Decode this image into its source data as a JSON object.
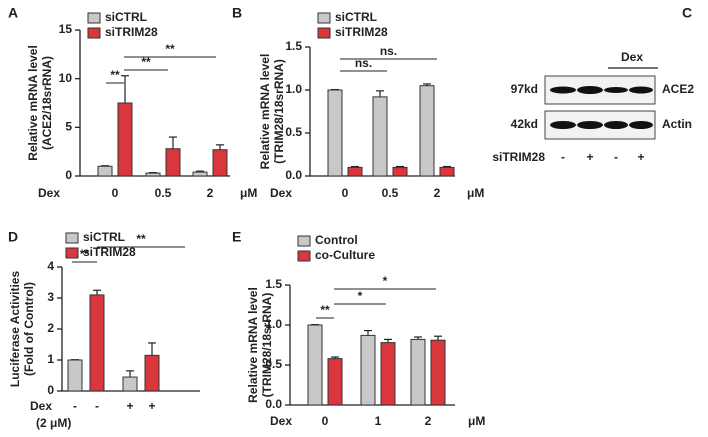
{
  "chart_data": [
    {
      "type": "bar",
      "panel": "A",
      "ylabel": [
        "Relative mRNA level",
        "(ACE2/18srRNA)"
      ],
      "xlabel": "Dex",
      "unit": "μM",
      "categories": [
        "0",
        "0.5",
        "2"
      ],
      "series": [
        {
          "name": "siCTRL",
          "color": "#c8c8c8",
          "values": [
            1,
            0.3,
            0.4
          ],
          "errors": [
            0.05,
            0.05,
            0.1
          ]
        },
        {
          "name": "siTRIM28",
          "color": "#d9363e",
          "values": [
            7.5,
            2.8,
            2.7
          ],
          "errors": [
            2.8,
            1.2,
            0.5
          ]
        }
      ],
      "ylim": [
        0,
        15
      ],
      "yticks": [
        0,
        5,
        10,
        15
      ],
      "annotations": [
        "**",
        "**",
        "**"
      ]
    },
    {
      "type": "bar",
      "panel": "B",
      "ylabel": [
        "Relative mRNA level",
        "(TRIM28/18srRNA)"
      ],
      "xlabel": "Dex",
      "unit": "μM",
      "categories": [
        "0",
        "0.5",
        "2"
      ],
      "series": [
        {
          "name": "siCTRL",
          "color": "#c8c8c8",
          "values": [
            1.0,
            0.92,
            1.05
          ],
          "errors": [
            0.005,
            0.07,
            0.02
          ]
        },
        {
          "name": "siTRIM28",
          "color": "#d9363e",
          "values": [
            0.1,
            0.1,
            0.1
          ],
          "errors": [
            0.01,
            0.01,
            0.01
          ]
        }
      ],
      "ylim": [
        0,
        1.5
      ],
      "yticks": [
        {
          "value": 0,
          "label": "0.0"
        },
        {
          "value": 0.5,
          "label": "0.5"
        },
        {
          "value": 1,
          "label": "1.0"
        },
        {
          "value": 1.5,
          "label": "1.5"
        }
      ],
      "annotations": [
        "ns.",
        "ns."
      ]
    },
    {
      "type": "bar",
      "panel": "D",
      "ylabel": [
        "Luciferase Activities",
        "(Fold of Control)"
      ],
      "xlabel": "Dex",
      "unit": "(2 μM)",
      "categories": [
        "-",
        "-",
        "+",
        "+"
      ],
      "series": [
        {
          "name": "siCTRL",
          "color": "#c8c8c8",
          "values": [
            1,
            null,
            0.45,
            null
          ],
          "errors": [
            0.01,
            null,
            0.2,
            null
          ]
        },
        {
          "name": "siTRIM28",
          "color": "#d9363e",
          "values": [
            null,
            3.1,
            null,
            1.15
          ],
          "errors": [
            null,
            0.15,
            null,
            0.4
          ]
        }
      ],
      "ylim": [
        0,
        4
      ],
      "yticks": [
        0,
        1,
        2,
        3,
        4
      ],
      "annotations": [
        "**",
        "**"
      ]
    },
    {
      "type": "bar",
      "panel": "E",
      "ylabel": [
        "Relative mRNA level",
        "(TRIM28/18srRNA)"
      ],
      "xlabel": "Dex",
      "unit": "μM",
      "categories": [
        "0",
        "1",
        "2"
      ],
      "series": [
        {
          "name": "Control",
          "color": "#c8c8c8",
          "values": [
            1.0,
            0.87,
            0.82
          ],
          "errors": [
            0.005,
            0.06,
            0.03
          ]
        },
        {
          "name": "co-Culture",
          "color": "#d9363e",
          "values": [
            0.58,
            0.78,
            0.81
          ],
          "errors": [
            0.02,
            0.04,
            0.05
          ]
        }
      ],
      "ylim": [
        0,
        1.5
      ],
      "yticks": [
        {
          "value": 0,
          "label": "0.0"
        },
        {
          "value": 0.5,
          "label": "0.5"
        },
        {
          "value": 1,
          "label": "1.0"
        },
        {
          "value": 1.5,
          "label": "1.5"
        }
      ],
      "annotations": [
        "**",
        "*",
        "*"
      ]
    }
  ],
  "blot": {
    "panel": "C",
    "treatment": "Dex",
    "rows": [
      {
        "size": "97kd",
        "protein": "ACE2"
      },
      {
        "size": "42kd",
        "protein": "Actin"
      }
    ],
    "lane_label": "siTRIM28",
    "lanes": [
      "-",
      "+",
      "-",
      "+"
    ]
  }
}
